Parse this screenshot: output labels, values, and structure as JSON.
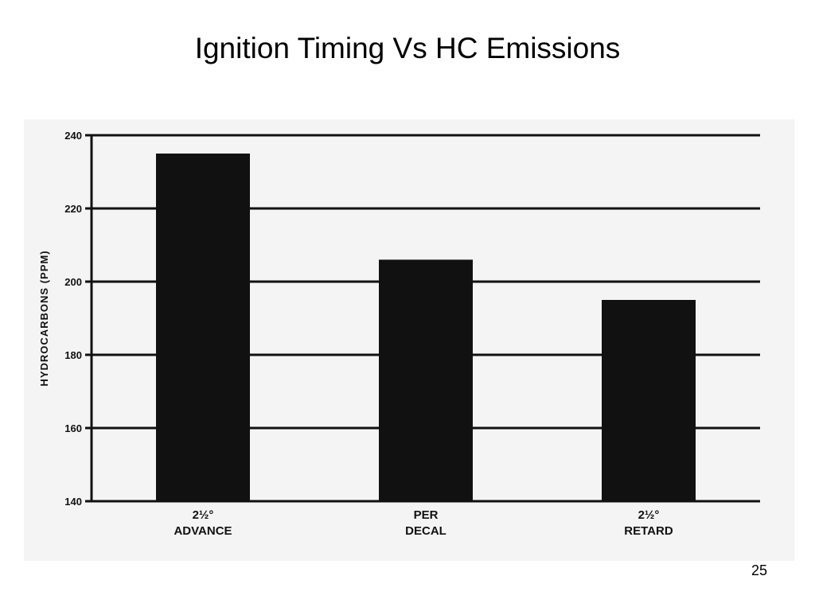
{
  "slide": {
    "title": "Ignition Timing Vs HC Emissions",
    "page_number": "25"
  },
  "chart_data": {
    "type": "bar",
    "title": "",
    "xlabel": "",
    "ylabel": "HYDROCARBONS (PPM)",
    "ylim": [
      140,
      240
    ],
    "yticks": [
      140,
      160,
      180,
      200,
      220,
      240
    ],
    "grid": true,
    "legend": "none",
    "categories": [
      [
        "2½°",
        "ADVANCE"
      ],
      [
        "PER",
        "DECAL"
      ],
      [
        "2½°",
        "RETARD"
      ]
    ],
    "values": [
      235,
      206,
      195
    ],
    "colors": {
      "bar": "#111111",
      "grid": "#111111",
      "axis": "#111111"
    }
  }
}
